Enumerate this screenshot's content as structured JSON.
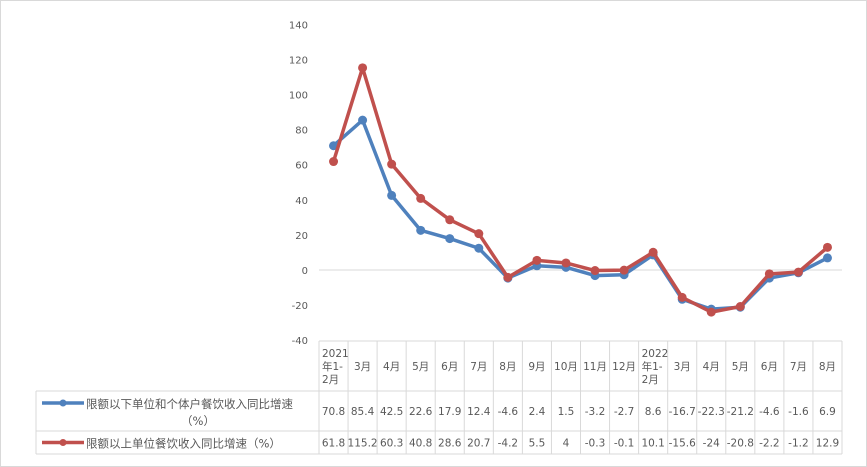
{
  "chart_data": {
    "type": "line",
    "title": "",
    "xlabel": "",
    "ylabel": "",
    "ylim": [
      -40,
      140
    ],
    "yticks": [
      -40,
      -20,
      0,
      20,
      40,
      60,
      80,
      100,
      120,
      140
    ],
    "grid": false,
    "legend": "bottom data table",
    "categories": [
      "2021年1-2月",
      "3月",
      "4月",
      "5月",
      "6月",
      "7月",
      "8月",
      "9月",
      "10月",
      "11月",
      "12月",
      "2022年1-2月",
      "3月",
      "4月",
      "5月",
      "6月",
      "7月",
      "8月"
    ],
    "category_lines": [
      [
        "2021",
        "年1-",
        "2月"
      ],
      [
        "3月"
      ],
      [
        "4月"
      ],
      [
        "5月"
      ],
      [
        "6月"
      ],
      [
        "7月"
      ],
      [
        "8月"
      ],
      [
        "9月"
      ],
      [
        "10月"
      ],
      [
        "11月"
      ],
      [
        "12月"
      ],
      [
        "2022",
        "年1-",
        "2月"
      ],
      [
        "3月"
      ],
      [
        "4月"
      ],
      [
        "5月"
      ],
      [
        "6月"
      ],
      [
        "7月"
      ],
      [
        "8月"
      ]
    ],
    "series": [
      {
        "name": "限额以下单位和个体户餐饮收入同比增速（%）",
        "name_lines": [
          "限额以下单位和个体户餐饮收入同比增速",
          "（%）"
        ],
        "color": "#4f81bd",
        "values": [
          70.8,
          85.4,
          42.5,
          22.6,
          17.9,
          12.4,
          -4.6,
          2.4,
          1.5,
          -3.2,
          -2.7,
          8.6,
          -16.7,
          -22.3,
          -21.2,
          -4.6,
          -1.6,
          6.9
        ]
      },
      {
        "name": "限额以上单位餐饮收入同比增速（%）",
        "name_lines": [
          "限额以上单位餐饮收入同比增速（%）"
        ],
        "color": "#c0504d",
        "values": [
          61.8,
          115.2,
          60.3,
          40.8,
          28.6,
          20.7,
          -4.2,
          5.5,
          4,
          -0.3,
          -0.1,
          10.1,
          -15.6,
          -24,
          -20.8,
          -2.2,
          -1.2,
          12.9
        ]
      }
    ]
  }
}
